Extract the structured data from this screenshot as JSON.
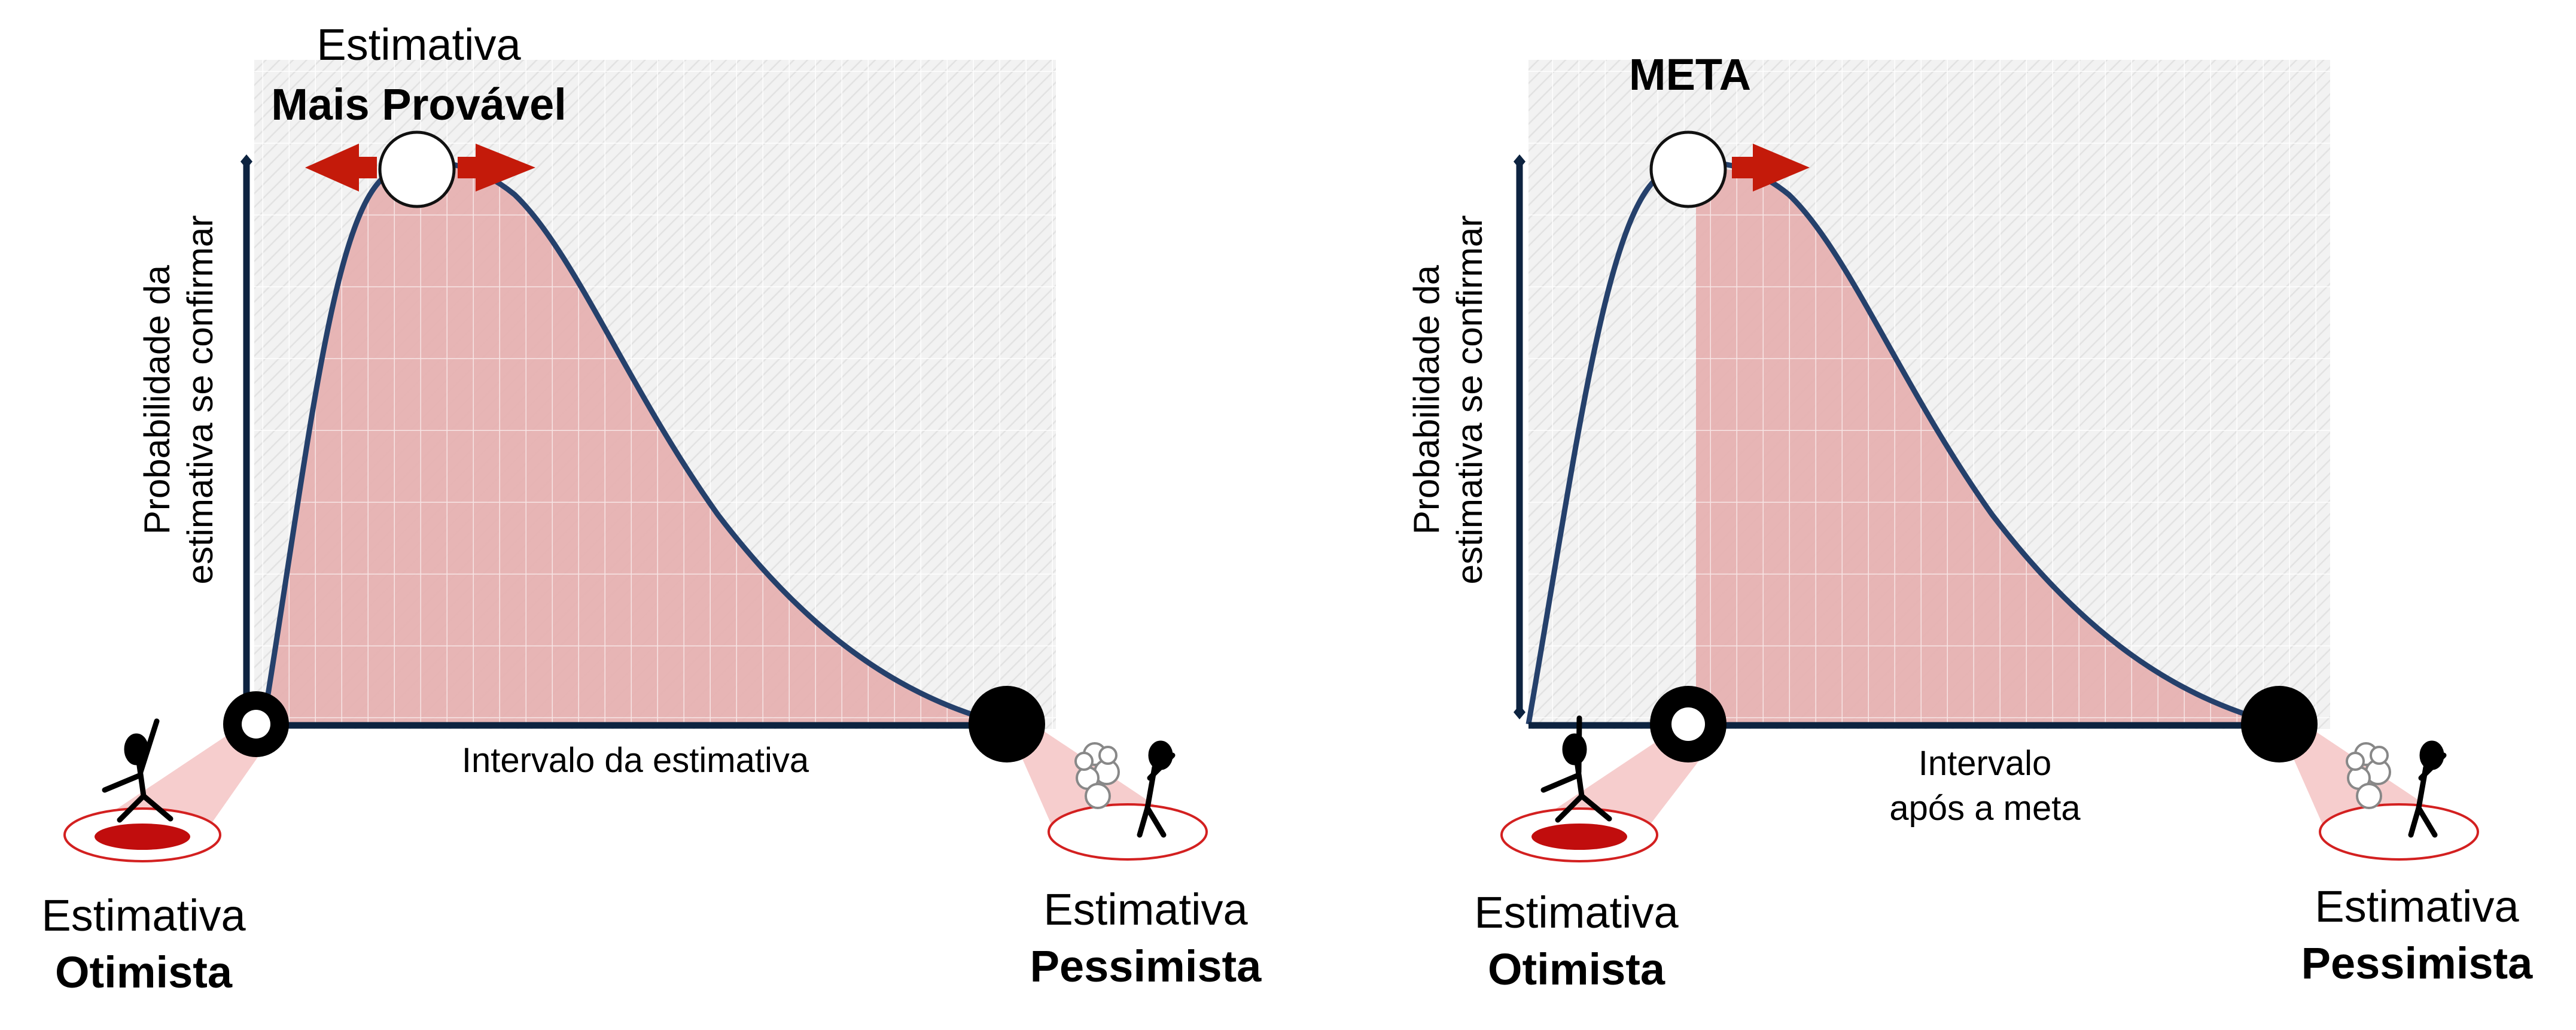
{
  "left_diagram": {
    "top_label": "Estimativa",
    "top_label_bold": "Mais Provável",
    "y_axis_line1": "Probabilidade da",
    "y_axis_line2": "estimativa se confirmar",
    "x_axis_label": "Intervalo da estimativa",
    "optimistic_line1": "Estimativa",
    "optimistic_line2": "Otimista",
    "pessimistic_line1": "Estimativa",
    "pessimistic_line2": "Pessimista"
  },
  "right_diagram": {
    "top_label_bold": "META",
    "y_axis_line1": "Probabilidade da",
    "y_axis_line2": "estimativa se confirmar",
    "x_axis_line1": "Intervalo",
    "x_axis_line2": "após a meta",
    "optimistic_line1": "Estimativa",
    "optimistic_line2": "Otimista",
    "pessimistic_line1": "Estimativa",
    "pessimistic_line2": "Pessimista"
  },
  "colors": {
    "curve": "#25406b",
    "shaded_area": "#e6a8a8",
    "arrow": "#c41a0a",
    "axis": "#0d2340",
    "spotlight": "#f4c4c4",
    "ring": "#d32020",
    "grid_bg": "#f1f1f1"
  },
  "icons": {
    "optimistic_figure": "happy-stick-figure-icon",
    "pessimistic_figure": "worried-stick-figure-icon"
  }
}
